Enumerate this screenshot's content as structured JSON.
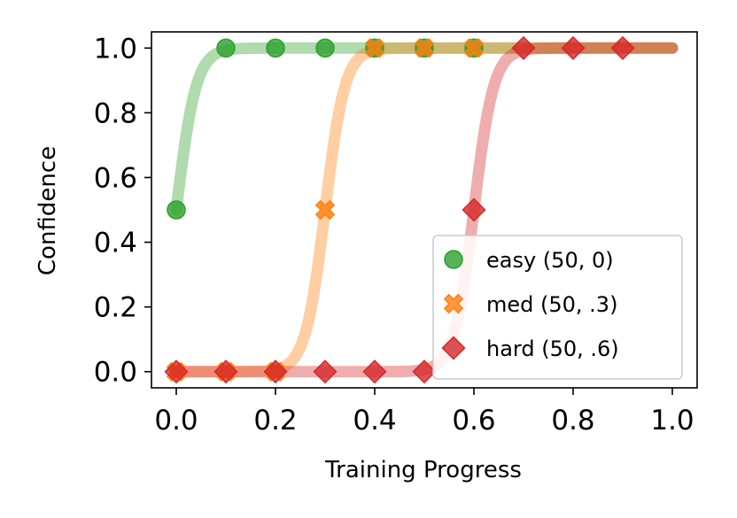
{
  "chart_data": {
    "type": "line",
    "title": "",
    "xlabel": "Training Progress",
    "ylabel": "Confidence",
    "xlim": [
      -0.05,
      1.05
    ],
    "ylim": [
      -0.05,
      1.05
    ],
    "xticks": [
      "0.0",
      "0.2",
      "0.4",
      "0.6",
      "0.8",
      "1.0"
    ],
    "yticks": [
      "0.0",
      "0.2",
      "0.4",
      "0.6",
      "0.8",
      "1.0"
    ],
    "grid": false,
    "legend_position": "lower-right",
    "series": [
      {
        "name": "easy (50, 0)",
        "color": "#2ca02c",
        "marker": "circle",
        "curve": {
          "form": "logistic",
          "steepness": 50,
          "midpoint": 0
        },
        "x": [
          0.0,
          0.1,
          0.2,
          0.3,
          0.4,
          0.5,
          0.6
        ],
        "values": [
          0.5,
          1.0,
          1.0,
          1.0,
          1.0,
          1.0,
          1.0
        ]
      },
      {
        "name": "med (50, .3)",
        "color": "#ff7f0e",
        "marker": "x",
        "curve": {
          "form": "logistic",
          "steepness": 50,
          "midpoint": 0.3
        },
        "x": [
          0.0,
          0.1,
          0.2,
          0.3,
          0.4,
          0.5,
          0.6
        ],
        "values": [
          0.0,
          0.0,
          0.0,
          0.5,
          1.0,
          1.0,
          1.0
        ]
      },
      {
        "name": "hard (50, .6)",
        "color": "#d62728",
        "marker": "diamond",
        "curve": {
          "form": "logistic",
          "steepness": 50,
          "midpoint": 0.6
        },
        "x": [
          0.0,
          0.1,
          0.2,
          0.3,
          0.4,
          0.5,
          0.6,
          0.7,
          0.8,
          0.9
        ],
        "values": [
          0.0,
          0.0,
          0.0,
          0.0,
          0.0,
          0.0,
          0.5,
          1.0,
          1.0,
          1.0
        ]
      }
    ]
  }
}
